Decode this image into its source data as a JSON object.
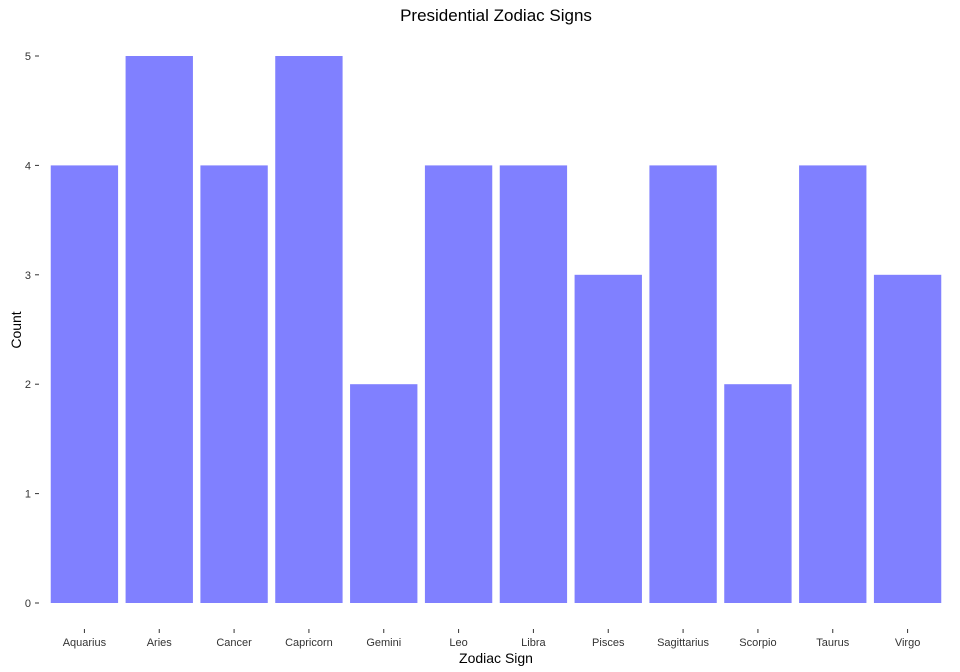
{
  "chart_data": {
    "type": "bar",
    "title": "Presidential Zodiac Signs",
    "xlabel": "Zodiac Sign",
    "ylabel": "Count",
    "categories": [
      "Aquarius",
      "Aries",
      "Cancer",
      "Capricorn",
      "Gemini",
      "Leo",
      "Libra",
      "Pisces",
      "Sagittarius",
      "Scorpio",
      "Taurus",
      "Virgo"
    ],
    "values": [
      4,
      5,
      4,
      5,
      2,
      4,
      4,
      3,
      4,
      2,
      4,
      3
    ],
    "ylim": [
      0,
      5
    ],
    "yticks": [
      "0",
      "1",
      "2",
      "3",
      "4",
      "5"
    ],
    "grid": false,
    "legend": "none",
    "bar_color": "#8080ff",
    "background_color": "#ffffff"
  }
}
